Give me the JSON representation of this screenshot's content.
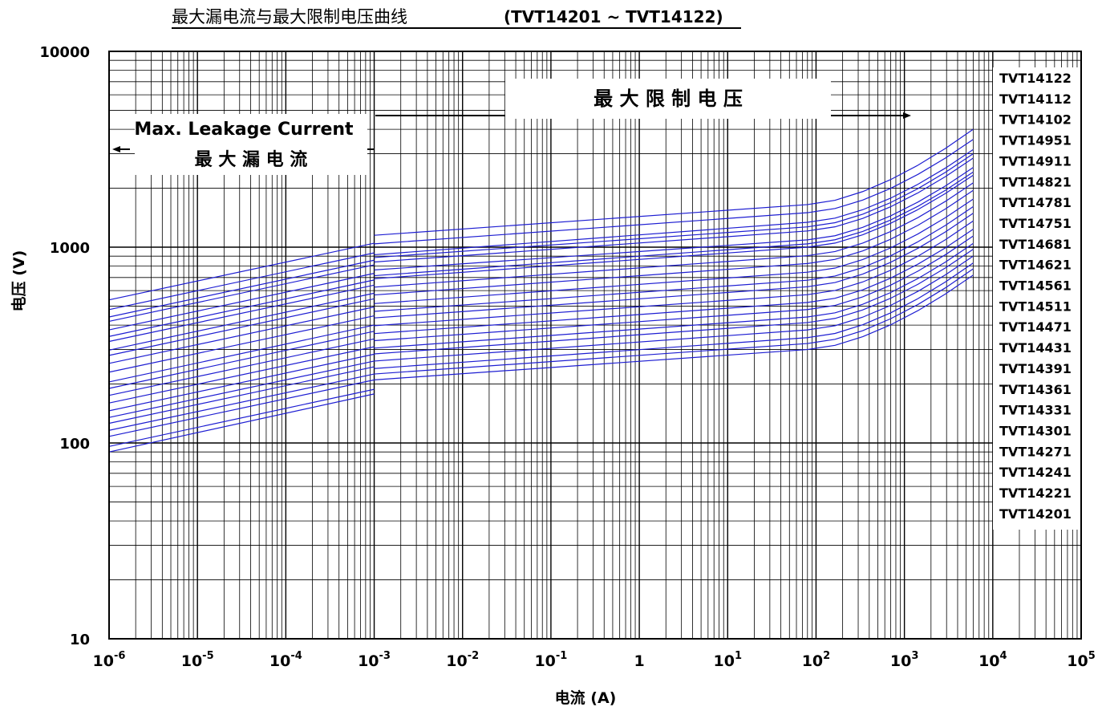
{
  "chart_data": {
    "type": "line",
    "title": "最大漏电流与最大限制电压曲线",
    "title_models": "(TVT14201 ~ TVT14122)",
    "xlabel": "电流 (A)",
    "ylabel": "电压 (V)",
    "x_scale": "log",
    "y_scale": "log",
    "xlim": [
      1e-06,
      100000
    ],
    "ylim": [
      10,
      10000
    ],
    "grid": true,
    "x_tick_labels": [
      {
        "base": "10",
        "exp": "-6"
      },
      {
        "base": "10",
        "exp": "-5"
      },
      {
        "base": "10",
        "exp": "-4"
      },
      {
        "base": "10",
        "exp": "-3"
      },
      {
        "base": "10",
        "exp": "-2"
      },
      {
        "base": "10",
        "exp": "-1"
      },
      {
        "base": "1",
        "exp": ""
      },
      {
        "base": "10",
        "exp": "1"
      },
      {
        "base": "10",
        "exp": "2"
      },
      {
        "base": "10",
        "exp": "3"
      },
      {
        "base": "10",
        "exp": "4"
      },
      {
        "base": "10",
        "exp": "5"
      }
    ],
    "y_tick_labels": [
      "10",
      "100",
      "1000",
      "10000"
    ],
    "annotations": {
      "leakage_en": "Max. Leakage Current",
      "leakage_cn": "最 大 漏 电 流",
      "clamping_cn": "最 大 限 制 电 压"
    },
    "line_color": "#1e1ed2",
    "series": [
      {
        "name": "TVT14201",
        "leak_v": [
          90,
          178
        ],
        "clamp_v": [
          210,
          300,
          720
        ]
      },
      {
        "name": "TVT14221",
        "leak_v": [
          96,
          188
        ],
        "clamp_v": [
          225,
          322,
          775
        ]
      },
      {
        "name": "TVT14241",
        "leak_v": [
          108,
          210
        ],
        "clamp_v": [
          240,
          345,
          830
        ]
      },
      {
        "name": "TVT14271",
        "leak_v": [
          116,
          225
        ],
        "clamp_v": [
          262,
          378,
          900
        ]
      },
      {
        "name": "TVT14301",
        "leak_v": [
          126,
          245
        ],
        "clamp_v": [
          285,
          412,
          975
        ]
      },
      {
        "name": "TVT14331",
        "leak_v": [
          135,
          262
        ],
        "clamp_v": [
          305,
          440,
          1045
        ]
      },
      {
        "name": "TVT14361",
        "leak_v": [
          146,
          284
        ],
        "clamp_v": [
          333,
          480,
          1140
        ]
      },
      {
        "name": "TVT14391",
        "leak_v": [
          160,
          310
        ],
        "clamp_v": [
          362,
          522,
          1235
        ]
      },
      {
        "name": "TVT14431",
        "leak_v": [
          175,
          340
        ],
        "clamp_v": [
          397,
          572,
          1360
        ]
      },
      {
        "name": "TVT14471",
        "leak_v": [
          190,
          372
        ],
        "clamp_v": [
          435,
          628,
          1490
        ]
      },
      {
        "name": "TVT14511",
        "leak_v": [
          205,
          400
        ],
        "clamp_v": [
          470,
          678,
          1610
        ]
      },
      {
        "name": "TVT14561",
        "leak_v": [
          230,
          446
        ],
        "clamp_v": [
          515,
          745,
          1760
        ]
      },
      {
        "name": "TVT14621",
        "leak_v": [
          255,
          495
        ],
        "clamp_v": [
          570,
          825,
          1950
        ]
      },
      {
        "name": "TVT14681",
        "leak_v": [
          280,
          545
        ],
        "clamp_v": [
          625,
          905,
          2130
        ]
      },
      {
        "name": "TVT14751",
        "leak_v": [
          298,
          582
        ],
        "clamp_v": [
          690,
          1000,
          2330
        ]
      },
      {
        "name": "TVT14781",
        "leak_v": [
          330,
          640
        ],
        "clamp_v": [
          715,
          1040,
          2420
        ]
      },
      {
        "name": "TVT14821",
        "leak_v": [
          350,
          680
        ],
        "clamp_v": [
          765,
          1090,
          2550
        ]
      },
      {
        "name": "TVT14911",
        "leak_v": [
          378,
          735
        ],
        "clamp_v": [
          840,
          1210,
          2850
        ]
      },
      {
        "name": "TVT14951",
        "leak_v": [
          418,
          812
        ],
        "clamp_v": [
          885,
          1270,
          3000
        ]
      },
      {
        "name": "TVT14102",
        "leak_v": [
          440,
          858
        ],
        "clamp_v": [
          915,
          1340,
          3150
        ]
      },
      {
        "name": "TVT14112",
        "leak_v": [
          480,
          935
        ],
        "clamp_v": [
          1040,
          1500,
          3550
        ]
      },
      {
        "name": "TVT14122",
        "leak_v": [
          538,
          1048
        ],
        "clamp_v": [
          1150,
          1650,
          4000
        ]
      }
    ]
  }
}
